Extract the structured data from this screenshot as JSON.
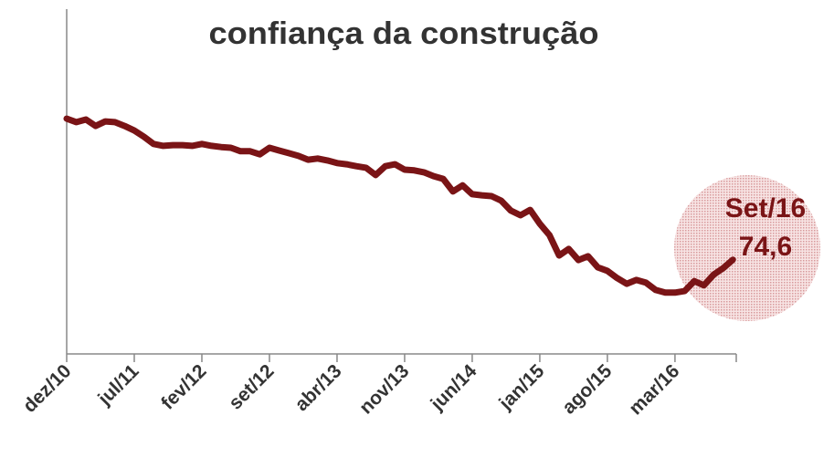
{
  "chart_data": {
    "type": "line",
    "title": "confiança da construção",
    "categories": [
      "dez/10",
      null,
      null,
      null,
      null,
      null,
      null,
      "jul/11",
      null,
      null,
      null,
      null,
      null,
      null,
      "fev/12",
      null,
      null,
      null,
      null,
      null,
      null,
      "set/12",
      null,
      null,
      null,
      null,
      null,
      null,
      "abr/13",
      null,
      null,
      null,
      null,
      null,
      null,
      "nov/13",
      null,
      null,
      null,
      null,
      null,
      null,
      "jun/14",
      null,
      null,
      null,
      null,
      null,
      null,
      "jan/15",
      null,
      null,
      null,
      null,
      null,
      null,
      "ago/15",
      null,
      null,
      null,
      null,
      null,
      null,
      "mar/16",
      null,
      null,
      null,
      null,
      null,
      null
    ],
    "series": [
      {
        "name": "confiança da construção",
        "color": "#7a1416",
        "values": [
          111.4,
          110.5,
          111.2,
          109.5,
          110.7,
          110.5,
          109.5,
          108.3,
          106.7,
          104.8,
          104.3,
          104.5,
          104.5,
          104.3,
          104.8,
          104.3,
          104.0,
          103.8,
          102.9,
          102.9,
          102.1,
          103.8,
          103.1,
          102.4,
          101.7,
          100.7,
          101.0,
          100.5,
          99.8,
          99.5,
          99.0,
          98.6,
          96.7,
          99.0,
          99.5,
          98.1,
          97.9,
          97.4,
          96.4,
          95.7,
          92.4,
          94.0,
          91.7,
          91.4,
          91.2,
          90.0,
          87.4,
          86.2,
          87.6,
          84.0,
          81.0,
          75.7,
          77.4,
          74.5,
          75.5,
          72.6,
          71.7,
          69.8,
          68.3,
          69.3,
          68.6,
          66.7,
          66.0,
          66.0,
          66.4,
          69.0,
          67.9,
          70.7,
          72.4,
          74.6
        ],
        "value_labels": [
          null,
          null,
          null,
          null,
          null,
          null,
          null,
          null,
          null,
          null,
          null,
          null,
          null,
          null,
          null,
          null,
          null,
          null,
          null,
          null,
          null,
          null,
          null,
          null,
          null,
          null,
          null,
          null,
          null,
          null,
          null,
          null,
          null,
          null,
          null,
          null,
          null,
          null,
          null,
          null,
          null,
          null,
          null,
          null,
          null,
          null,
          null,
          null,
          null,
          null,
          null,
          null,
          null,
          null,
          null,
          null,
          null,
          null,
          null,
          null,
          null,
          null,
          null,
          null,
          null,
          null,
          null,
          null,
          null,
          "74,6"
        ]
      }
    ],
    "annotation": {
      "label": "Set/16"
    },
    "ylim": [
      50,
      140
    ]
  }
}
